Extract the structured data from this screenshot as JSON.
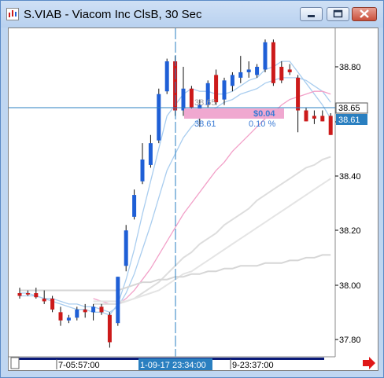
{
  "window": {
    "title": "S.VIAB - Viacom Inc ClsB, 30 Sec",
    "icons": [
      "app-chart-icon",
      "minimize-icon",
      "maximize-icon",
      "close-icon"
    ]
  },
  "chart": {
    "y_ticks": [
      "38.80",
      "38.60",
      "38.40",
      "38.20",
      "38.00",
      "37.80"
    ],
    "x_ticks": [
      "7-05:57:00",
      "1-09-17 23:34:00",
      "9-23:37:00"
    ],
    "crosshair": {
      "price_label": "38.65",
      "last_price_label": "38.61",
      "box_value_1": "38.65",
      "box_value_2": "38.61",
      "box_change": "$0.04",
      "box_percent": "0.10 %"
    },
    "colors": {
      "up": "#1f5fd6",
      "down": "#cc1a1a",
      "crosshair": "#2a7fc0",
      "measure_box": "#f0a8d0"
    }
  },
  "chart_data": {
    "type": "candlestick",
    "ylim": [
      37.72,
      38.95
    ],
    "y_ticks": [
      37.8,
      38.0,
      38.2,
      38.4,
      38.6,
      38.8
    ],
    "candles": [
      {
        "o": 37.97,
        "h": 37.99,
        "l": 37.95,
        "c": 37.96
      },
      {
        "o": 37.97,
        "h": 37.98,
        "l": 37.96,
        "c": 37.965
      },
      {
        "o": 37.97,
        "h": 37.99,
        "l": 37.95,
        "c": 37.955
      },
      {
        "o": 37.95,
        "h": 37.98,
        "l": 37.93,
        "c": 37.94
      },
      {
        "o": 37.95,
        "h": 37.96,
        "l": 37.9,
        "c": 37.91
      },
      {
        "o": 37.9,
        "h": 37.92,
        "l": 37.85,
        "c": 37.87
      },
      {
        "o": 37.87,
        "h": 37.89,
        "l": 37.86,
        "c": 37.88
      },
      {
        "o": 37.88,
        "h": 37.92,
        "l": 37.87,
        "c": 37.91
      },
      {
        "o": 37.91,
        "h": 37.93,
        "l": 37.88,
        "c": 37.9
      },
      {
        "o": 37.9,
        "h": 37.93,
        "l": 37.87,
        "c": 37.92
      },
      {
        "o": 37.92,
        "h": 37.93,
        "l": 37.89,
        "c": 37.9
      },
      {
        "o": 37.89,
        "h": 37.9,
        "l": 37.77,
        "c": 37.79
      },
      {
        "o": 37.86,
        "h": 38.03,
        "l": 37.85,
        "c": 38.03
      },
      {
        "o": 38.07,
        "h": 38.22,
        "l": 38.05,
        "c": 38.2
      },
      {
        "o": 38.25,
        "h": 38.35,
        "l": 38.24,
        "c": 38.33
      },
      {
        "o": 38.38,
        "h": 38.52,
        "l": 38.37,
        "c": 38.46
      },
      {
        "o": 38.44,
        "h": 38.55,
        "l": 38.43,
        "c": 38.52
      },
      {
        "o": 38.53,
        "h": 38.72,
        "l": 38.52,
        "c": 38.7
      },
      {
        "o": 38.71,
        "h": 38.83,
        "l": 38.7,
        "c": 38.82
      },
      {
        "o": 38.82,
        "h": 38.84,
        "l": 38.62,
        "c": 38.64
      },
      {
        "o": 38.64,
        "h": 38.8,
        "l": 38.62,
        "c": 38.72
      },
      {
        "o": 38.72,
        "h": 38.73,
        "l": 38.63,
        "c": 38.65
      },
      {
        "o": 38.63,
        "h": 38.68,
        "l": 38.58,
        "c": 38.66
      },
      {
        "o": 38.66,
        "h": 38.75,
        "l": 38.65,
        "c": 38.74
      },
      {
        "o": 38.77,
        "h": 38.79,
        "l": 38.66,
        "c": 38.67
      },
      {
        "o": 38.68,
        "h": 38.76,
        "l": 38.66,
        "c": 38.75
      },
      {
        "o": 38.73,
        "h": 38.78,
        "l": 38.71,
        "c": 38.77
      },
      {
        "o": 38.76,
        "h": 38.84,
        "l": 38.74,
        "c": 38.78
      },
      {
        "o": 38.78,
        "h": 38.82,
        "l": 38.76,
        "c": 38.79
      },
      {
        "o": 38.77,
        "h": 38.81,
        "l": 38.76,
        "c": 38.8
      },
      {
        "o": 38.79,
        "h": 38.9,
        "l": 38.78,
        "c": 38.89
      },
      {
        "o": 38.89,
        "h": 38.9,
        "l": 38.73,
        "c": 38.74
      },
      {
        "o": 38.8,
        "h": 38.82,
        "l": 38.74,
        "c": 38.75
      },
      {
        "o": 38.79,
        "h": 38.81,
        "l": 38.77,
        "c": 38.78
      },
      {
        "o": 38.76,
        "h": 38.77,
        "l": 38.56,
        "c": 38.64
      },
      {
        "o": 38.64,
        "h": 38.65,
        "l": 38.6,
        "c": 38.6
      },
      {
        "o": 38.62,
        "h": 38.64,
        "l": 38.59,
        "c": 38.61
      },
      {
        "o": 38.62,
        "h": 38.64,
        "l": 38.6,
        "c": 38.6
      },
      {
        "o": 38.62,
        "h": 38.63,
        "l": 38.55,
        "c": 38.55
      }
    ],
    "moving_averages": [
      {
        "color": "#a9cdef",
        "values": [
          37.97,
          37.97,
          37.96,
          37.95,
          37.94,
          37.93,
          37.92,
          37.91,
          37.91,
          37.9,
          37.9,
          37.89,
          37.93,
          38.02,
          38.13,
          38.26,
          38.38,
          38.5,
          38.62,
          38.66,
          38.7,
          38.72,
          38.71,
          38.71,
          38.7,
          38.7,
          38.71,
          38.73,
          38.75,
          38.76,
          38.79,
          38.8,
          38.82,
          38.82,
          38.78,
          38.74,
          38.7,
          38.66,
          38.61
        ]
      },
      {
        "color": "#a9cdef",
        "values": [
          37.96,
          37.96,
          37.96,
          37.95,
          37.95,
          37.94,
          37.93,
          37.93,
          37.92,
          37.92,
          37.91,
          37.9,
          37.92,
          37.97,
          38.04,
          38.13,
          38.22,
          38.32,
          38.42,
          38.48,
          38.54,
          38.58,
          38.61,
          38.63,
          38.65,
          38.67,
          38.68,
          38.7,
          38.71,
          38.72,
          38.74,
          38.75,
          38.76,
          38.76,
          38.76,
          38.75,
          38.73,
          38.71,
          38.67
        ]
      },
      {
        "color": "#f2a0c8",
        "values": [
          null,
          null,
          null,
          null,
          null,
          null,
          null,
          null,
          null,
          37.95,
          37.94,
          37.93,
          37.93,
          37.95,
          37.98,
          38.02,
          38.06,
          38.11,
          38.16,
          38.21,
          38.26,
          38.3,
          38.34,
          38.38,
          38.42,
          38.45,
          38.49,
          38.52,
          38.55,
          38.58,
          38.61,
          38.63,
          38.66,
          38.68,
          38.69,
          38.7,
          38.71,
          38.71,
          38.7
        ]
      },
      {
        "color": "#dddddd",
        "values": [
          null,
          null,
          null,
          null,
          null,
          null,
          null,
          null,
          null,
          37.93,
          37.93,
          37.93,
          37.93,
          37.94,
          37.95,
          37.97,
          37.99,
          38.01,
          38.04,
          38.07,
          38.1,
          38.12,
          38.15,
          38.17,
          38.19,
          38.22,
          38.24,
          38.26,
          38.28,
          38.31,
          38.33,
          38.35,
          38.37,
          38.39,
          38.41,
          38.43,
          38.44,
          38.46,
          38.47
        ]
      },
      {
        "color": "#e4e4e4",
        "values": [
          null,
          null,
          null,
          null,
          null,
          null,
          null,
          null,
          null,
          37.94,
          37.94,
          37.94,
          37.94,
          37.94,
          37.95,
          37.96,
          37.97,
          37.98,
          38.0,
          38.02,
          38.04,
          38.05,
          38.07,
          38.09,
          38.11,
          38.13,
          38.15,
          38.17,
          38.19,
          38.21,
          38.23,
          38.25,
          38.27,
          38.29,
          38.31,
          38.33,
          38.35,
          38.37,
          38.39
        ]
      },
      {
        "color": "#d6d6d6",
        "values": [
          37.98,
          37.98,
          37.98,
          37.98,
          37.98,
          37.98,
          37.98,
          37.98,
          37.98,
          37.98,
          37.98,
          37.98,
          37.98,
          37.99,
          38.0,
          38.01,
          38.01,
          38.02,
          38.02,
          38.03,
          38.03,
          38.04,
          38.04,
          38.05,
          38.05,
          38.06,
          38.06,
          38.07,
          38.07,
          38.07,
          38.08,
          38.08,
          38.08,
          38.09,
          38.09,
          38.1,
          38.1,
          38.11,
          38.11
        ]
      }
    ]
  }
}
